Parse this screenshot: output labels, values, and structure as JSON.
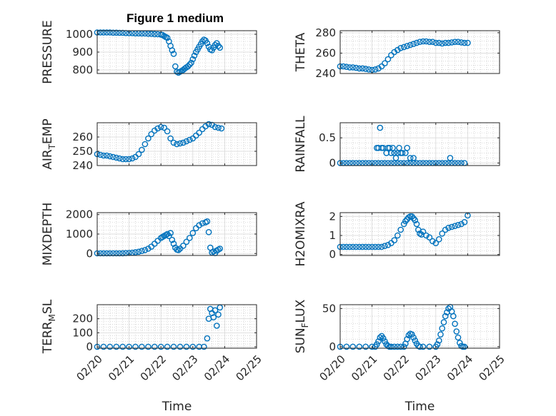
{
  "figure": {
    "title": "Figure 1 medium",
    "x_label": "Time",
    "x_tick_labels": [
      "02/20",
      "02/21",
      "02/22",
      "02/23",
      "02/24",
      "02/25"
    ]
  },
  "colors": {
    "marker": "#0072BD",
    "axes": "#262626",
    "grid_major": "#d9d9d9",
    "grid_minor": "#bdbdbd"
  },
  "chart_data": [
    {
      "type": "scatter",
      "ylabel": "PRESSURE",
      "ylim": [
        780,
        1020
      ],
      "yticks": [
        800,
        900,
        1000
      ],
      "xlim": [
        0,
        5
      ],
      "x": [
        0,
        0.1,
        0.2,
        0.3,
        0.4,
        0.5,
        0.6,
        0.7,
        0.8,
        0.9,
        1.0,
        1.1,
        1.2,
        1.3,
        1.4,
        1.5,
        1.6,
        1.7,
        1.8,
        1.9,
        2.0,
        2.05,
        2.1,
        2.15,
        2.2,
        2.25,
        2.3,
        2.35,
        2.4,
        2.45,
        2.5,
        2.55,
        2.6,
        2.65,
        2.7,
        2.75,
        2.8,
        2.85,
        2.9,
        2.95,
        3.0,
        3.05,
        3.1,
        3.15,
        3.2,
        3.25,
        3.3,
        3.35,
        3.4,
        3.45,
        3.5,
        3.55,
        3.6,
        3.65,
        3.7,
        3.75,
        3.8,
        3.85
      ],
      "y": [
        1010,
        1010,
        1010,
        1010,
        1010,
        1009,
        1009,
        1008,
        1008,
        1007,
        1006,
        1006,
        1005,
        1005,
        1004,
        1004,
        1003,
        1002,
        1001,
        1000,
        998,
        996,
        990,
        985,
        980,
        960,
        935,
        910,
        890,
        820,
        790,
        785,
        790,
        795,
        800,
        808,
        815,
        820,
        830,
        840,
        860,
        880,
        900,
        915,
        930,
        945,
        960,
        970,
        965,
        950,
        930,
        915,
        910,
        925,
        940,
        950,
        935,
        925
      ]
    },
    {
      "type": "scatter",
      "ylabel": "THETA",
      "ylim": [
        240,
        282
      ],
      "yticks": [
        240,
        260,
        280
      ],
      "xlim": [
        0,
        5
      ],
      "x": [
        0,
        0.1,
        0.2,
        0.3,
        0.4,
        0.5,
        0.6,
        0.7,
        0.8,
        0.9,
        1.0,
        1.1,
        1.2,
        1.3,
        1.4,
        1.5,
        1.6,
        1.7,
        1.8,
        1.9,
        2.0,
        2.1,
        2.2,
        2.3,
        2.4,
        2.5,
        2.6,
        2.7,
        2.8,
        2.9,
        3.0,
        3.1,
        3.2,
        3.3,
        3.4,
        3.5,
        3.6,
        3.7,
        3.8,
        3.9,
        4.0
      ],
      "y": [
        247,
        247,
        246.5,
        246,
        246,
        245.5,
        245,
        245,
        244.5,
        244,
        243.5,
        244,
        245,
        247,
        250,
        254,
        258,
        261,
        263,
        265,
        266,
        267,
        268,
        269,
        270,
        271,
        271.5,
        271.5,
        271,
        271,
        270,
        270,
        269.5,
        270,
        270,
        270.5,
        271,
        271,
        270.5,
        270,
        270
      ]
    },
    {
      "type": "scatter",
      "ylabel": "AIR_TEMP",
      "ylim": [
        240,
        270
      ],
      "yticks": [
        240,
        250,
        260
      ],
      "xlim": [
        0,
        5
      ],
      "x": [
        0,
        0.1,
        0.2,
        0.3,
        0.4,
        0.5,
        0.6,
        0.7,
        0.8,
        0.9,
        1.0,
        1.1,
        1.2,
        1.3,
        1.4,
        1.5,
        1.6,
        1.7,
        1.8,
        1.9,
        2.0,
        2.1,
        2.2,
        2.3,
        2.4,
        2.5,
        2.6,
        2.7,
        2.8,
        2.9,
        3.0,
        3.1,
        3.2,
        3.3,
        3.4,
        3.5,
        3.6,
        3.7,
        3.8,
        3.9
      ],
      "y": [
        248,
        247.5,
        247,
        247,
        246.5,
        246,
        245.5,
        245,
        244.5,
        244.5,
        244.5,
        245,
        246,
        248,
        251,
        255,
        259,
        262,
        264.5,
        266,
        267,
        266.5,
        264,
        259,
        256,
        255,
        255.5,
        256,
        257,
        258,
        259,
        261,
        263,
        265.5,
        267.5,
        269,
        268.5,
        267,
        266.5,
        266
      ]
    },
    {
      "type": "scatter",
      "ylabel": "RAINFALL",
      "ylim": [
        -0.05,
        0.8
      ],
      "yticks": [
        0,
        0.5
      ],
      "xlim": [
        0,
        5
      ],
      "x": [
        0,
        0.1,
        0.2,
        0.3,
        0.4,
        0.5,
        0.6,
        0.7,
        0.8,
        0.9,
        1.0,
        1.1,
        1.2,
        1.3,
        1.4,
        1.5,
        1.6,
        1.7,
        1.8,
        1.9,
        2.0,
        2.1,
        2.2,
        2.3,
        2.4,
        2.5,
        2.6,
        2.7,
        2.8,
        2.9,
        3.0,
        3.1,
        3.2,
        3.3,
        3.4,
        3.5,
        3.6,
        3.7,
        3.8,
        3.9,
        1.15,
        1.2,
        1.25,
        1.3,
        1.35,
        1.45,
        1.5,
        1.55,
        1.6,
        1.65,
        1.7,
        1.75,
        1.8,
        1.85,
        1.9,
        1.95,
        2.05,
        2.1,
        2.2,
        2.3,
        3.45
      ],
      "y": [
        0,
        0,
        0,
        0,
        0,
        0,
        0,
        0,
        0,
        0,
        0,
        0,
        0,
        0,
        0,
        0,
        0,
        0,
        0,
        0,
        0,
        0,
        0,
        0,
        0,
        0,
        0,
        0,
        0,
        0,
        0,
        0,
        0,
        0,
        0,
        0,
        0,
        0,
        0,
        0,
        0.3,
        0.3,
        0.7,
        0.3,
        0.3,
        0.2,
        0.3,
        0.3,
        0.2,
        0.3,
        0.2,
        0.1,
        0.2,
        0.3,
        0.2,
        0.2,
        0.2,
        0.3,
        0.1,
        0.1,
        0.1
      ]
    },
    {
      "type": "scatter",
      "ylabel": "MIXDEPTH",
      "ylim": [
        -100,
        2100
      ],
      "yticks": [
        0,
        1000,
        2000
      ],
      "xlim": [
        0,
        5
      ],
      "x": [
        0,
        0.1,
        0.2,
        0.3,
        0.4,
        0.5,
        0.6,
        0.7,
        0.8,
        0.9,
        1.0,
        1.1,
        1.2,
        1.3,
        1.4,
        1.5,
        1.6,
        1.7,
        1.8,
        1.9,
        2.0,
        2.05,
        2.1,
        2.15,
        2.2,
        2.25,
        2.3,
        2.35,
        2.4,
        2.45,
        2.5,
        2.55,
        2.6,
        2.7,
        2.8,
        2.9,
        3.0,
        3.1,
        3.2,
        3.3,
        3.4,
        3.45,
        3.5,
        3.55,
        3.6,
        3.65,
        3.7,
        3.75,
        3.8,
        3.85
      ],
      "y": [
        10,
        10,
        10,
        10,
        10,
        10,
        10,
        10,
        15,
        20,
        30,
        40,
        60,
        90,
        130,
        180,
        250,
        350,
        500,
        650,
        800,
        850,
        900,
        950,
        1000,
        900,
        1050,
        700,
        500,
        300,
        200,
        180,
        250,
        400,
        600,
        800,
        1050,
        1300,
        1450,
        1550,
        1600,
        1650,
        1100,
        300,
        50,
        100,
        20,
        150,
        200,
        250
      ]
    },
    {
      "type": "scatter",
      "ylabel": "H2OMIXRA",
      "ylim": [
        -0.05,
        2.2
      ],
      "yticks": [
        0,
        1,
        2
      ],
      "xlim": [
        0,
        5
      ],
      "x": [
        0,
        0.1,
        0.2,
        0.3,
        0.4,
        0.5,
        0.6,
        0.7,
        0.8,
        0.9,
        1.0,
        1.1,
        1.2,
        1.3,
        1.4,
        1.5,
        1.6,
        1.7,
        1.8,
        1.9,
        2.0,
        2.05,
        2.1,
        2.15,
        2.2,
        2.25,
        2.3,
        2.35,
        2.4,
        2.45,
        2.5,
        2.55,
        2.6,
        2.7,
        2.8,
        2.9,
        3.0,
        3.1,
        3.2,
        3.3,
        3.4,
        3.5,
        3.6,
        3.7,
        3.8,
        3.9,
        4.0
      ],
      "y": [
        0.4,
        0.4,
        0.4,
        0.4,
        0.4,
        0.4,
        0.4,
        0.4,
        0.4,
        0.4,
        0.4,
        0.4,
        0.4,
        0.4,
        0.45,
        0.5,
        0.6,
        0.75,
        1.0,
        1.3,
        1.6,
        1.75,
        1.85,
        1.95,
        2.0,
        2.0,
        1.9,
        1.8,
        1.6,
        1.3,
        1.1,
        1.05,
        1.2,
        1.0,
        0.9,
        0.7,
        0.6,
        0.8,
        1.1,
        1.3,
        1.4,
        1.45,
        1.5,
        1.55,
        1.6,
        1.7,
        2.05
      ]
    },
    {
      "type": "scatter",
      "ylabel": "TERR_MSL",
      "ylim": [
        -10,
        300
      ],
      "yticks": [
        0,
        100,
        200
      ],
      "xlim": [
        0,
        5
      ],
      "x": [
        0,
        0.2,
        0.4,
        0.6,
        0.8,
        1.0,
        1.2,
        1.4,
        1.6,
        1.8,
        2.0,
        2.2,
        2.4,
        2.6,
        2.8,
        3.0,
        3.2,
        3.35,
        3.45,
        3.5,
        3.55,
        3.6,
        3.65,
        3.7,
        3.75,
        3.8,
        3.85
      ],
      "y": [
        0,
        0,
        0,
        0,
        0,
        0,
        0,
        0,
        0,
        0,
        0,
        0,
        0,
        0,
        0,
        0,
        0,
        0,
        60,
        200,
        270,
        240,
        210,
        260,
        150,
        230,
        280
      ]
    },
    {
      "type": "scatter",
      "ylabel": "SUN_FLUX",
      "ylim": [
        -2,
        55
      ],
      "yticks": [
        0,
        50
      ],
      "xlim": [
        0,
        5
      ],
      "x": [
        0,
        0.2,
        0.4,
        0.6,
        0.8,
        1.0,
        1.1,
        1.15,
        1.2,
        1.25,
        1.3,
        1.35,
        1.4,
        1.45,
        1.5,
        1.55,
        1.6,
        1.7,
        1.8,
        1.9,
        2.0,
        2.05,
        2.1,
        2.15,
        2.2,
        2.25,
        2.3,
        2.35,
        2.4,
        2.45,
        2.5,
        2.6,
        2.8,
        3.0,
        3.05,
        3.1,
        3.15,
        3.2,
        3.25,
        3.3,
        3.35,
        3.4,
        3.45,
        3.5,
        3.55,
        3.6,
        3.65,
        3.7,
        3.75,
        3.8,
        3.85,
        3.9
      ],
      "y": [
        0,
        0,
        0,
        0,
        0,
        0,
        0,
        3,
        7,
        12,
        14,
        11,
        7,
        3,
        1,
        0,
        0,
        0,
        0,
        0,
        0,
        4,
        10,
        15,
        17,
        16,
        12,
        8,
        4,
        1,
        0,
        0,
        0,
        0,
        3,
        8,
        16,
        24,
        32,
        40,
        45,
        50,
        52,
        46,
        40,
        30,
        20,
        12,
        5,
        1,
        0,
        0
      ]
    }
  ]
}
